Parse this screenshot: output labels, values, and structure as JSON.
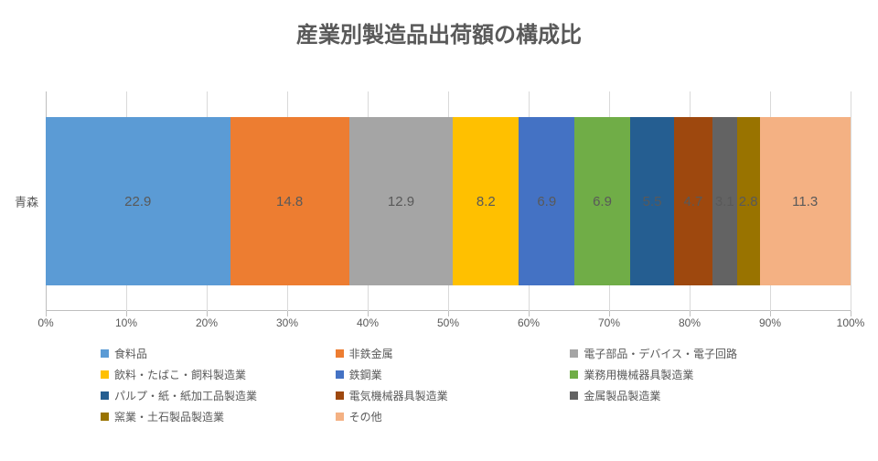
{
  "chart": {
    "type": "stacked-bar-100",
    "title": "産業別製造品出荷額の構成比",
    "title_fontsize": 24,
    "title_color": "#595959",
    "background_color": "#ffffff",
    "grid_color": "#d9d9d9",
    "axis_color": "#bfbfbf",
    "text_color": "#595959",
    "label_fontsize": 15,
    "tick_fontsize": 12,
    "category_fontsize": 13,
    "legend_fontsize": 12,
    "xlim": [
      0,
      100
    ],
    "xtick_step": 10,
    "xtick_suffix": "%",
    "categories": [
      "青森"
    ],
    "series": [
      {
        "name": "食料品",
        "color": "#5b9bd5",
        "values": [
          22.9
        ]
      },
      {
        "name": "非鉄金属",
        "color": "#ed7d31",
        "values": [
          14.8
        ]
      },
      {
        "name": "電子部品・デバイス・電子回路",
        "color": "#a5a5a5",
        "values": [
          12.9
        ]
      },
      {
        "name": "飲料・たばこ・飼料製造業",
        "color": "#ffc000",
        "values": [
          8.2
        ]
      },
      {
        "name": "鉄鋼業",
        "color": "#4472c4",
        "values": [
          6.9
        ]
      },
      {
        "name": "業務用機械器具製造業",
        "color": "#70ad47",
        "values": [
          6.9
        ]
      },
      {
        "name": "パルプ・紙・紙加工品製造業",
        "color": "#255e91",
        "values": [
          5.5
        ]
      },
      {
        "name": "電気機械器具製造業",
        "color": "#9e480e",
        "values": [
          4.7
        ]
      },
      {
        "name": "金属製品製造業",
        "color": "#636363",
        "values": [
          3.1
        ]
      },
      {
        "name": "窯業・土石製品製造業",
        "color": "#997300",
        "values": [
          2.8
        ]
      },
      {
        "name": "その他",
        "color": "#f4b183",
        "values": [
          11.3
        ]
      }
    ]
  }
}
